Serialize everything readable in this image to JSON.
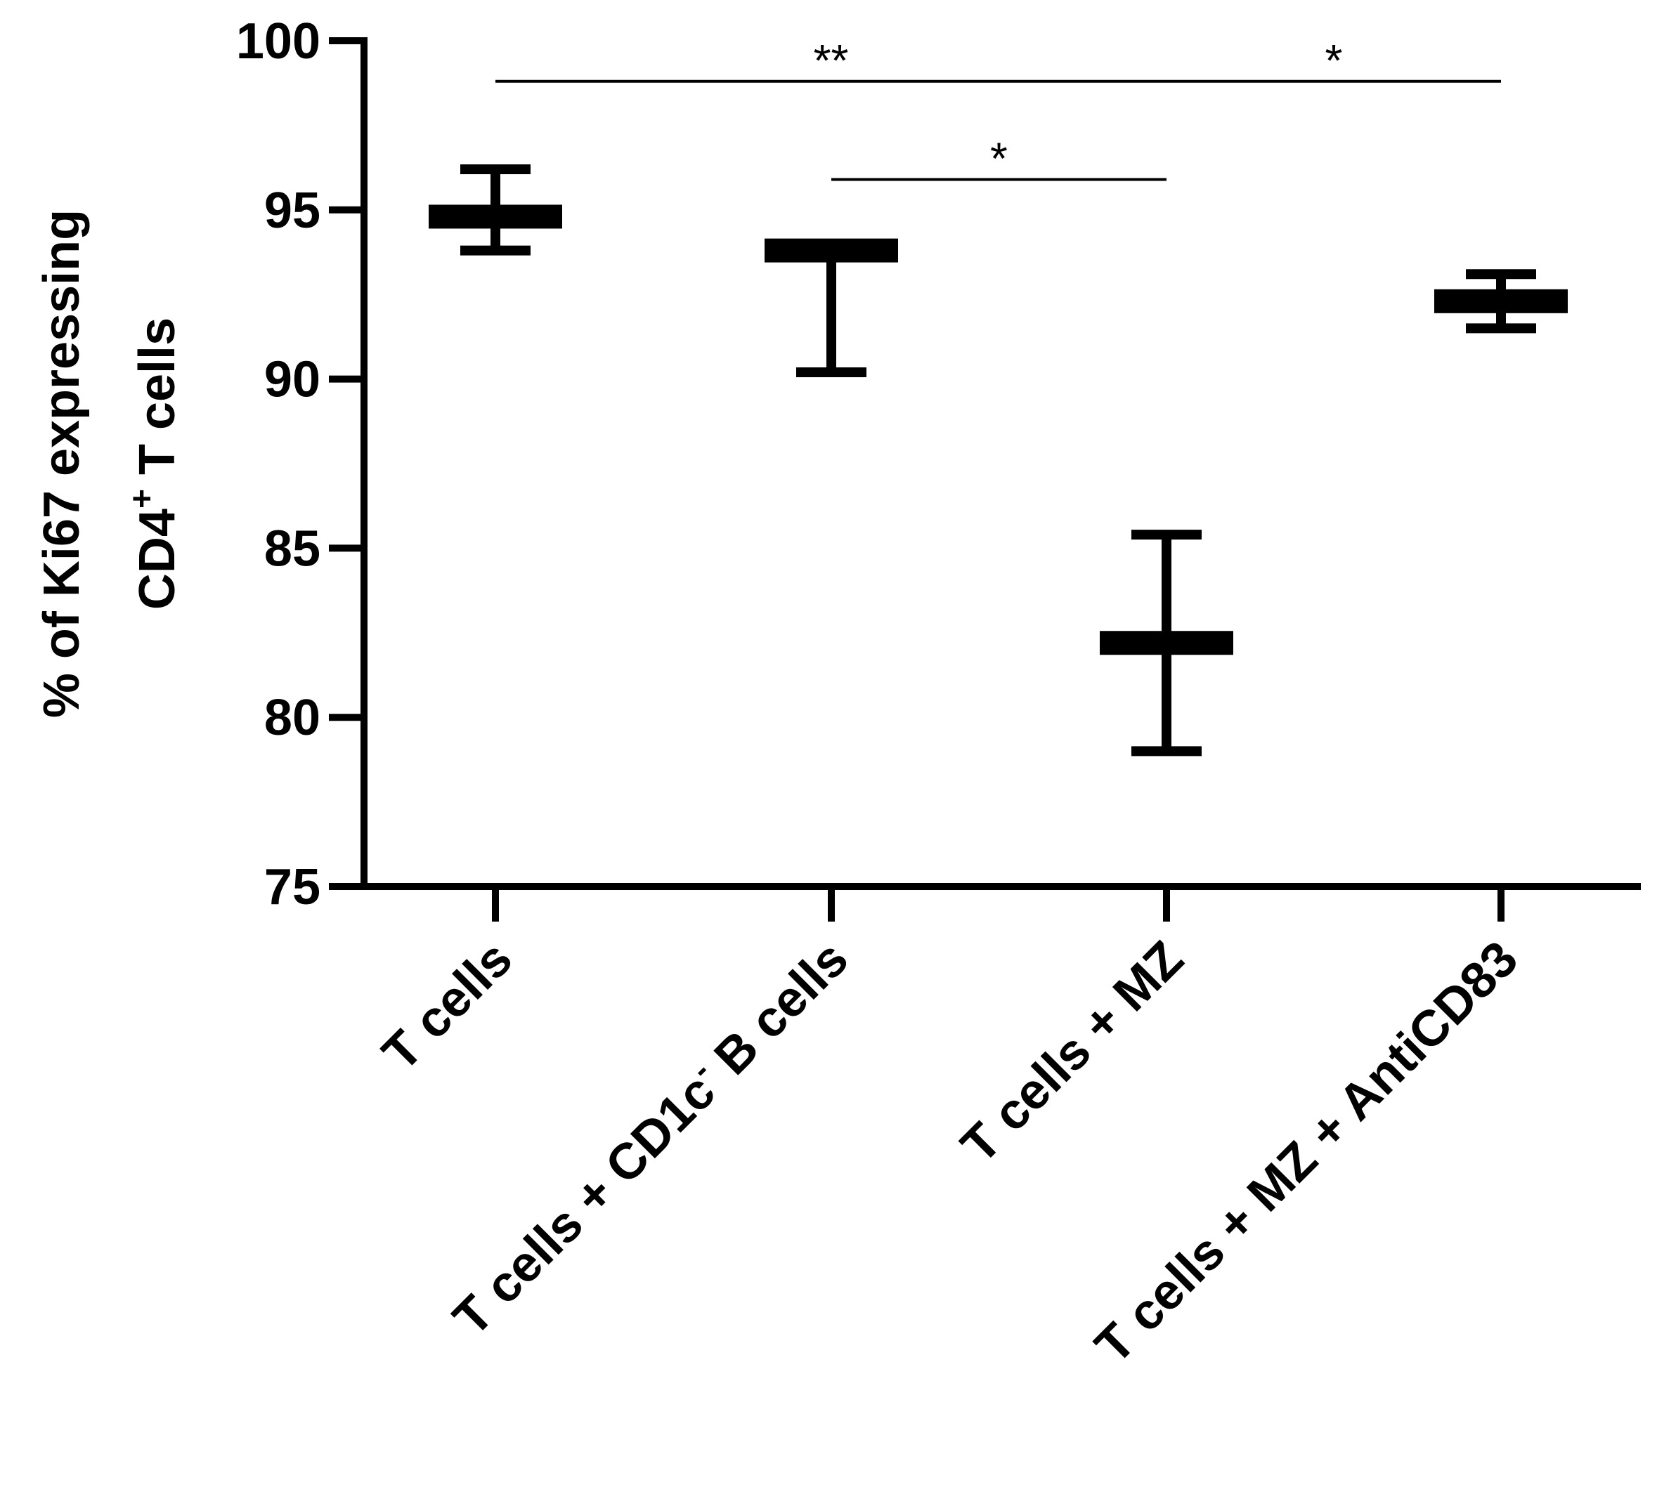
{
  "chart_data": {
    "type": "errorbar",
    "title": "",
    "ylabel_line1": "% of Ki67 expressing",
    "ylabel_line2_main": "CD4",
    "ylabel_line2_sup": "+",
    "ylabel_line2_rest": " T cells",
    "ylim": [
      75,
      100
    ],
    "yticks": [
      75,
      80,
      85,
      90,
      95,
      100
    ],
    "ytick_labels": [
      "75",
      "80",
      "85",
      "90",
      "95",
      "100"
    ],
    "grid": false,
    "categories": [
      {
        "label": "T cells",
        "sup": "",
        "label_rest": ""
      },
      {
        "label": "T cells + CD1c",
        "sup": "-",
        "label_rest": " B cells"
      },
      {
        "label": "T cells + MZ",
        "sup": "",
        "label_rest": ""
      },
      {
        "label": "T cells + MZ + AntiCD83",
        "sup": "",
        "label_rest": ""
      }
    ],
    "values": [
      94.8,
      93.8,
      82.2,
      92.3
    ],
    "error_low": [
      93.8,
      90.2,
      79.0,
      91.5
    ],
    "error_high": [
      96.2,
      93.8,
      85.4,
      93.1
    ],
    "significance": [
      {
        "from": 0,
        "to": 2,
        "level_value": 98.8,
        "label": "**"
      },
      {
        "from": 1,
        "to": 2,
        "level_value": 95.9,
        "label": "*"
      },
      {
        "from": 2,
        "to": 3,
        "level_value": 98.8,
        "label": "*"
      }
    ]
  }
}
